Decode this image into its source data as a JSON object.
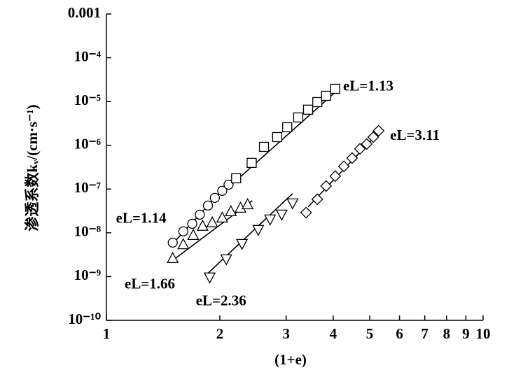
{
  "chart_data": {
    "type": "scatter",
    "x_label": "(1+e)",
    "y_label": "渗透系数kᵥ/(cm·s⁻¹)",
    "xscale": "log",
    "yscale": "log",
    "xlim": [
      1,
      10
    ],
    "ylim": [
      1e-10,
      0.001
    ],
    "xticks": [
      1,
      2,
      3,
      4,
      5,
      6,
      7,
      8,
      9,
      10
    ],
    "yticks": [
      {
        "value": 1e-10,
        "label": "10⁻¹⁰"
      },
      {
        "value": 1e-09,
        "label": "10⁻⁹"
      },
      {
        "value": 1e-08,
        "label": "10⁻⁸"
      },
      {
        "value": 1e-07,
        "label": "10⁻⁷"
      },
      {
        "value": 1e-06,
        "label": "10⁻⁶"
      },
      {
        "value": 1e-05,
        "label": "10⁻⁵"
      },
      {
        "value": 0.0001,
        "label": "10⁻⁴"
      },
      0.001
    ],
    "series": [
      {
        "name": "eL=1.14",
        "marker": "circle",
        "color": "#000000",
        "x": [
          1.5,
          1.6,
          1.69,
          1.77,
          1.86,
          1.94,
          2.03,
          2.11
        ],
        "values": [
          5.97e-09,
          1.08e-08,
          1.61e-08,
          2.6e-08,
          4.2e-08,
          6.3e-08,
          9.1e-08,
          1.26e-07
        ],
        "fit": {
          "x": [
            1.48,
            2.14
          ],
          "y": [
            4.97e-09,
            1.58e-07
          ]
        }
      },
      {
        "name": "eL=1.66",
        "marker": "triangle-up",
        "color": "#000000",
        "x": [
          1.5,
          1.6,
          1.7,
          1.8,
          1.91,
          2.03,
          2.14,
          2.27,
          2.37
        ],
        "values": [
          2.66e-09,
          5.5e-09,
          8.95e-09,
          1.45e-08,
          1.74e-08,
          2.24e-08,
          3.13e-08,
          3.76e-08,
          4.5e-08
        ],
        "fit": {
          "x": [
            1.47,
            2.44
          ],
          "y": [
            2.06e-09,
            5.43e-08
          ]
        }
      },
      {
        "name": "eL=2.36",
        "marker": "triangle-down",
        "color": "#000000",
        "x": [
          1.88,
          2.08,
          2.29,
          2.53,
          2.72,
          2.92,
          3.12
        ],
        "values": [
          9.5e-10,
          2.47e-09,
          5.55e-09,
          1.16e-08,
          2.01e-08,
          2.6e-08,
          4.69e-08
        ],
        "fit": {
          "x": [
            1.85,
            3.12
          ],
          "y": [
            1.14e-09,
            7.85e-08
          ]
        }
      },
      {
        "name": "eL=1.13",
        "marker": "square",
        "color": "#000000",
        "x": [
          2.21,
          2.43,
          2.62,
          2.84,
          3.02,
          3.23,
          3.43,
          3.63,
          3.83,
          4.05
        ],
        "values": [
          1.76e-07,
          3.96e-07,
          9.2e-07,
          1.54e-06,
          2.58e-06,
          4.32e-06,
          6.5e-06,
          9.7e-06,
          1.35e-05,
          1.95e-05
        ],
        "fit": {
          "x": [
            2.16,
            4.07
          ],
          "y": [
            1.31e-07,
            1.69e-05
          ]
        }
      },
      {
        "name": "eL=3.11",
        "marker": "diamond",
        "color": "#000000",
        "x": [
          3.39,
          3.63,
          3.83,
          4.05,
          4.27,
          4.49,
          4.71,
          4.91,
          5.11,
          5.28
        ],
        "values": [
          2.9e-08,
          5.85e-08,
          1.17e-07,
          1.97e-07,
          3.3e-07,
          5.1e-07,
          8.3e-07,
          1.07e-06,
          1.54e-06,
          2.15e-06
        ],
        "fit": {
          "x": [
            3.43,
            5.38
          ],
          "y": [
            3.9e-08,
            2.31e-06
          ]
        }
      }
    ]
  }
}
